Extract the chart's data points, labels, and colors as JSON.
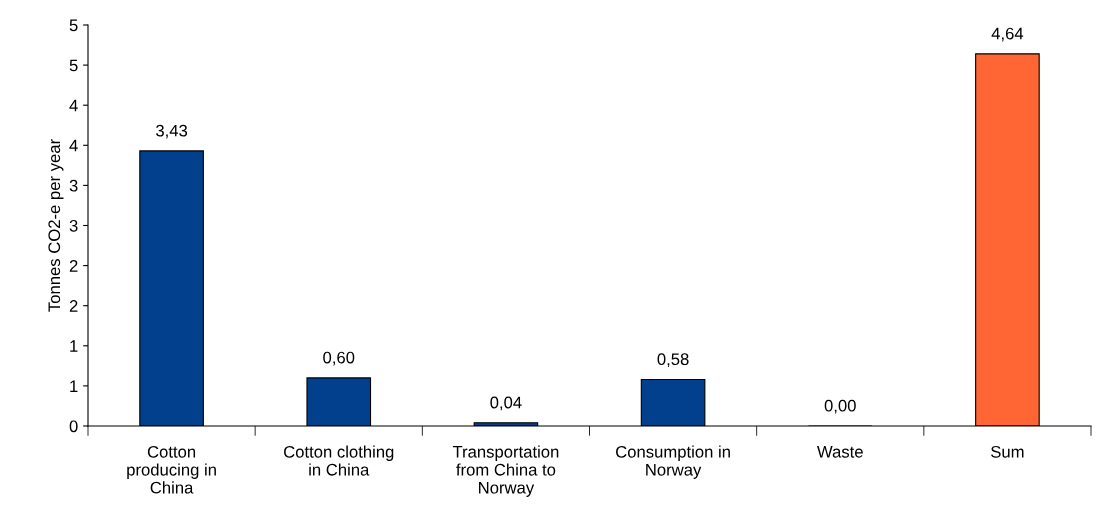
{
  "chart_data": {
    "type": "bar",
    "ylabel": "Tonnes CO2-e per year",
    "categories": [
      "Cotton producing in China",
      "Cotton clothing in China",
      "Transportation from China to Norway",
      "Consumption in Norway",
      "Waste",
      "Sum"
    ],
    "values": [
      3.43,
      0.6,
      0.04,
      0.58,
      0.0,
      4.64
    ],
    "colors": [
      "#023f8c",
      "#023f8c",
      "#023f8c",
      "#023f8c",
      "#023f8c",
      "#ff6633"
    ],
    "value_labels": [
      "3,43",
      "0,60",
      "0,04",
      "0,58",
      "0,00",
      "4,64"
    ],
    "ylim": [
      0,
      5
    ],
    "yticks": [
      0,
      {
        "value": 0.5,
        "label": "1"
      },
      1,
      {
        "value": 1.5,
        "label": "2"
      },
      2,
      {
        "value": 2.5,
        "label": "3"
      },
      3,
      {
        "value": 3.5,
        "label": "4"
      },
      4,
      {
        "value": 4.5,
        "label": "5"
      },
      5
    ],
    "grid": false,
    "legend": false
  }
}
